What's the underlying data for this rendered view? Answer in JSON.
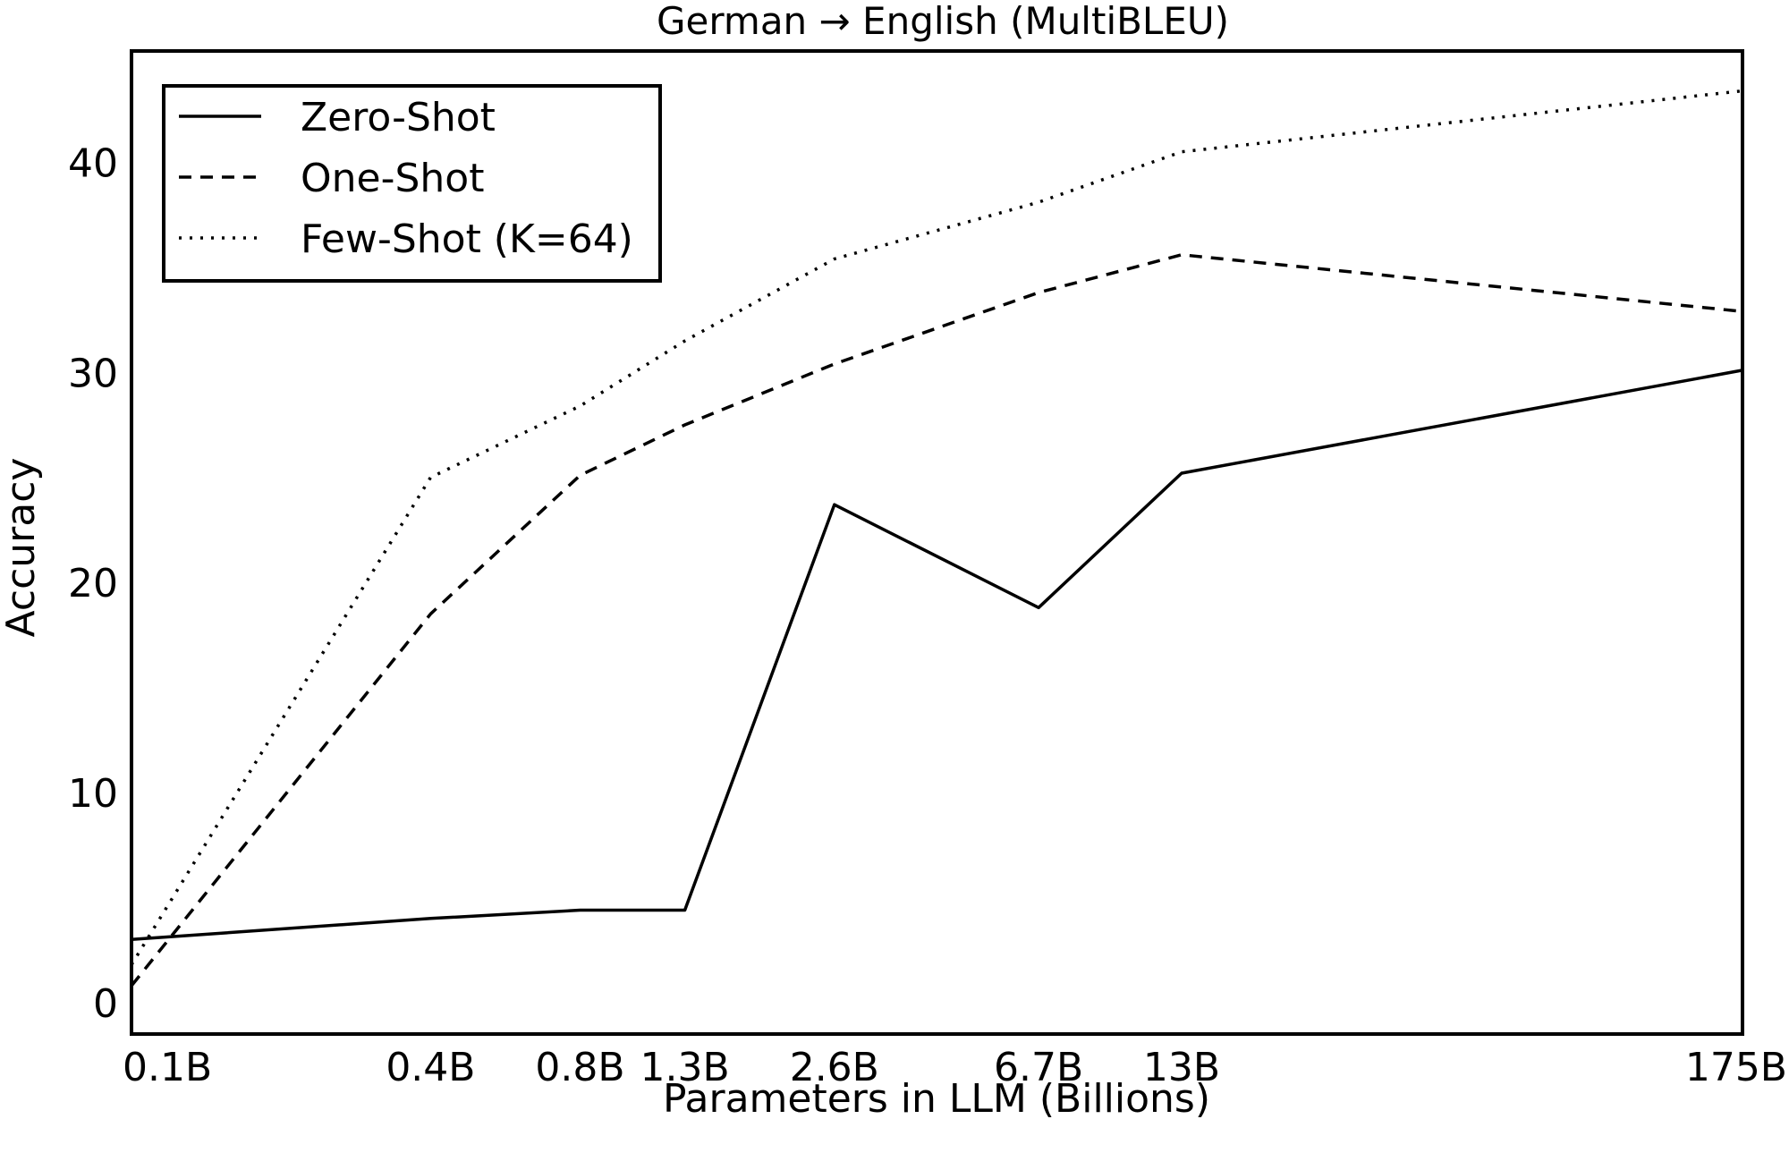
{
  "chart_data": {
    "type": "line",
    "title": "German → English (MultiBLEU)",
    "xlabel": "Parameters in LLM (Billions)",
    "ylabel": "Accuracy",
    "x_scale": "log",
    "x": [
      0.1,
      0.4,
      0.8,
      1.3,
      2.6,
      6.7,
      13,
      175
    ],
    "x_tick_labels": [
      "0.1B",
      "0.4B",
      "0.8B",
      "1.3B",
      "2.6B",
      "6.7B",
      "13B",
      "175B"
    ],
    "y_ticks": [
      0,
      10,
      20,
      30,
      40
    ],
    "ylim": [
      -1.5,
      45.3
    ],
    "grid": false,
    "legend_position": "top-left",
    "series": [
      {
        "name": "Zero-Shot",
        "style": "solid",
        "values": [
          3.0,
          4.0,
          4.4,
          4.4,
          23.7,
          18.8,
          25.2,
          30.1
        ]
      },
      {
        "name": "One-Shot",
        "style": "dashed",
        "values": [
          0.8,
          18.5,
          25.1,
          27.5,
          30.4,
          33.8,
          35.6,
          32.9
        ]
      },
      {
        "name": "Few-Shot (K=64)",
        "style": "dotted",
        "values": [
          1.8,
          25.0,
          28.4,
          31.5,
          35.4,
          38.1,
          40.5,
          43.4
        ]
      }
    ]
  }
}
